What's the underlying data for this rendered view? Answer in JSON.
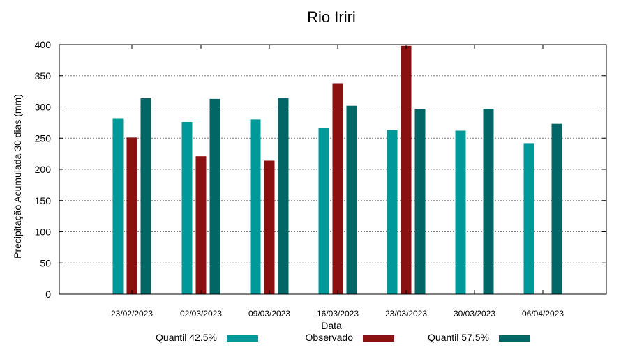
{
  "chart_data": {
    "type": "bar",
    "title": "Rio Iriri",
    "xlabel": "Data",
    "ylabel": "Precipitação Acumulada 30 dias (mm)",
    "ylim": [
      0,
      400
    ],
    "yticks": [
      0,
      50,
      100,
      150,
      200,
      250,
      300,
      350,
      400
    ],
    "categories": [
      "23/02/2023",
      "02/03/2023",
      "09/03/2023",
      "16/03/2023",
      "23/03/2023",
      "30/03/2023",
      "06/04/2023"
    ],
    "series": [
      {
        "name": "Quantil 42.5%",
        "color": "#009999",
        "values": [
          281,
          276,
          280,
          266,
          263,
          262,
          242
        ]
      },
      {
        "name": "Observado",
        "color": "#8b1010",
        "values": [
          251,
          221,
          214,
          338,
          398,
          null,
          null
        ]
      },
      {
        "name": "Quantil 57.5%",
        "color": "#006666",
        "values": [
          314,
          313,
          315,
          302,
          297,
          297,
          273
        ]
      }
    ],
    "grid": true,
    "legend_position": "bottom"
  }
}
